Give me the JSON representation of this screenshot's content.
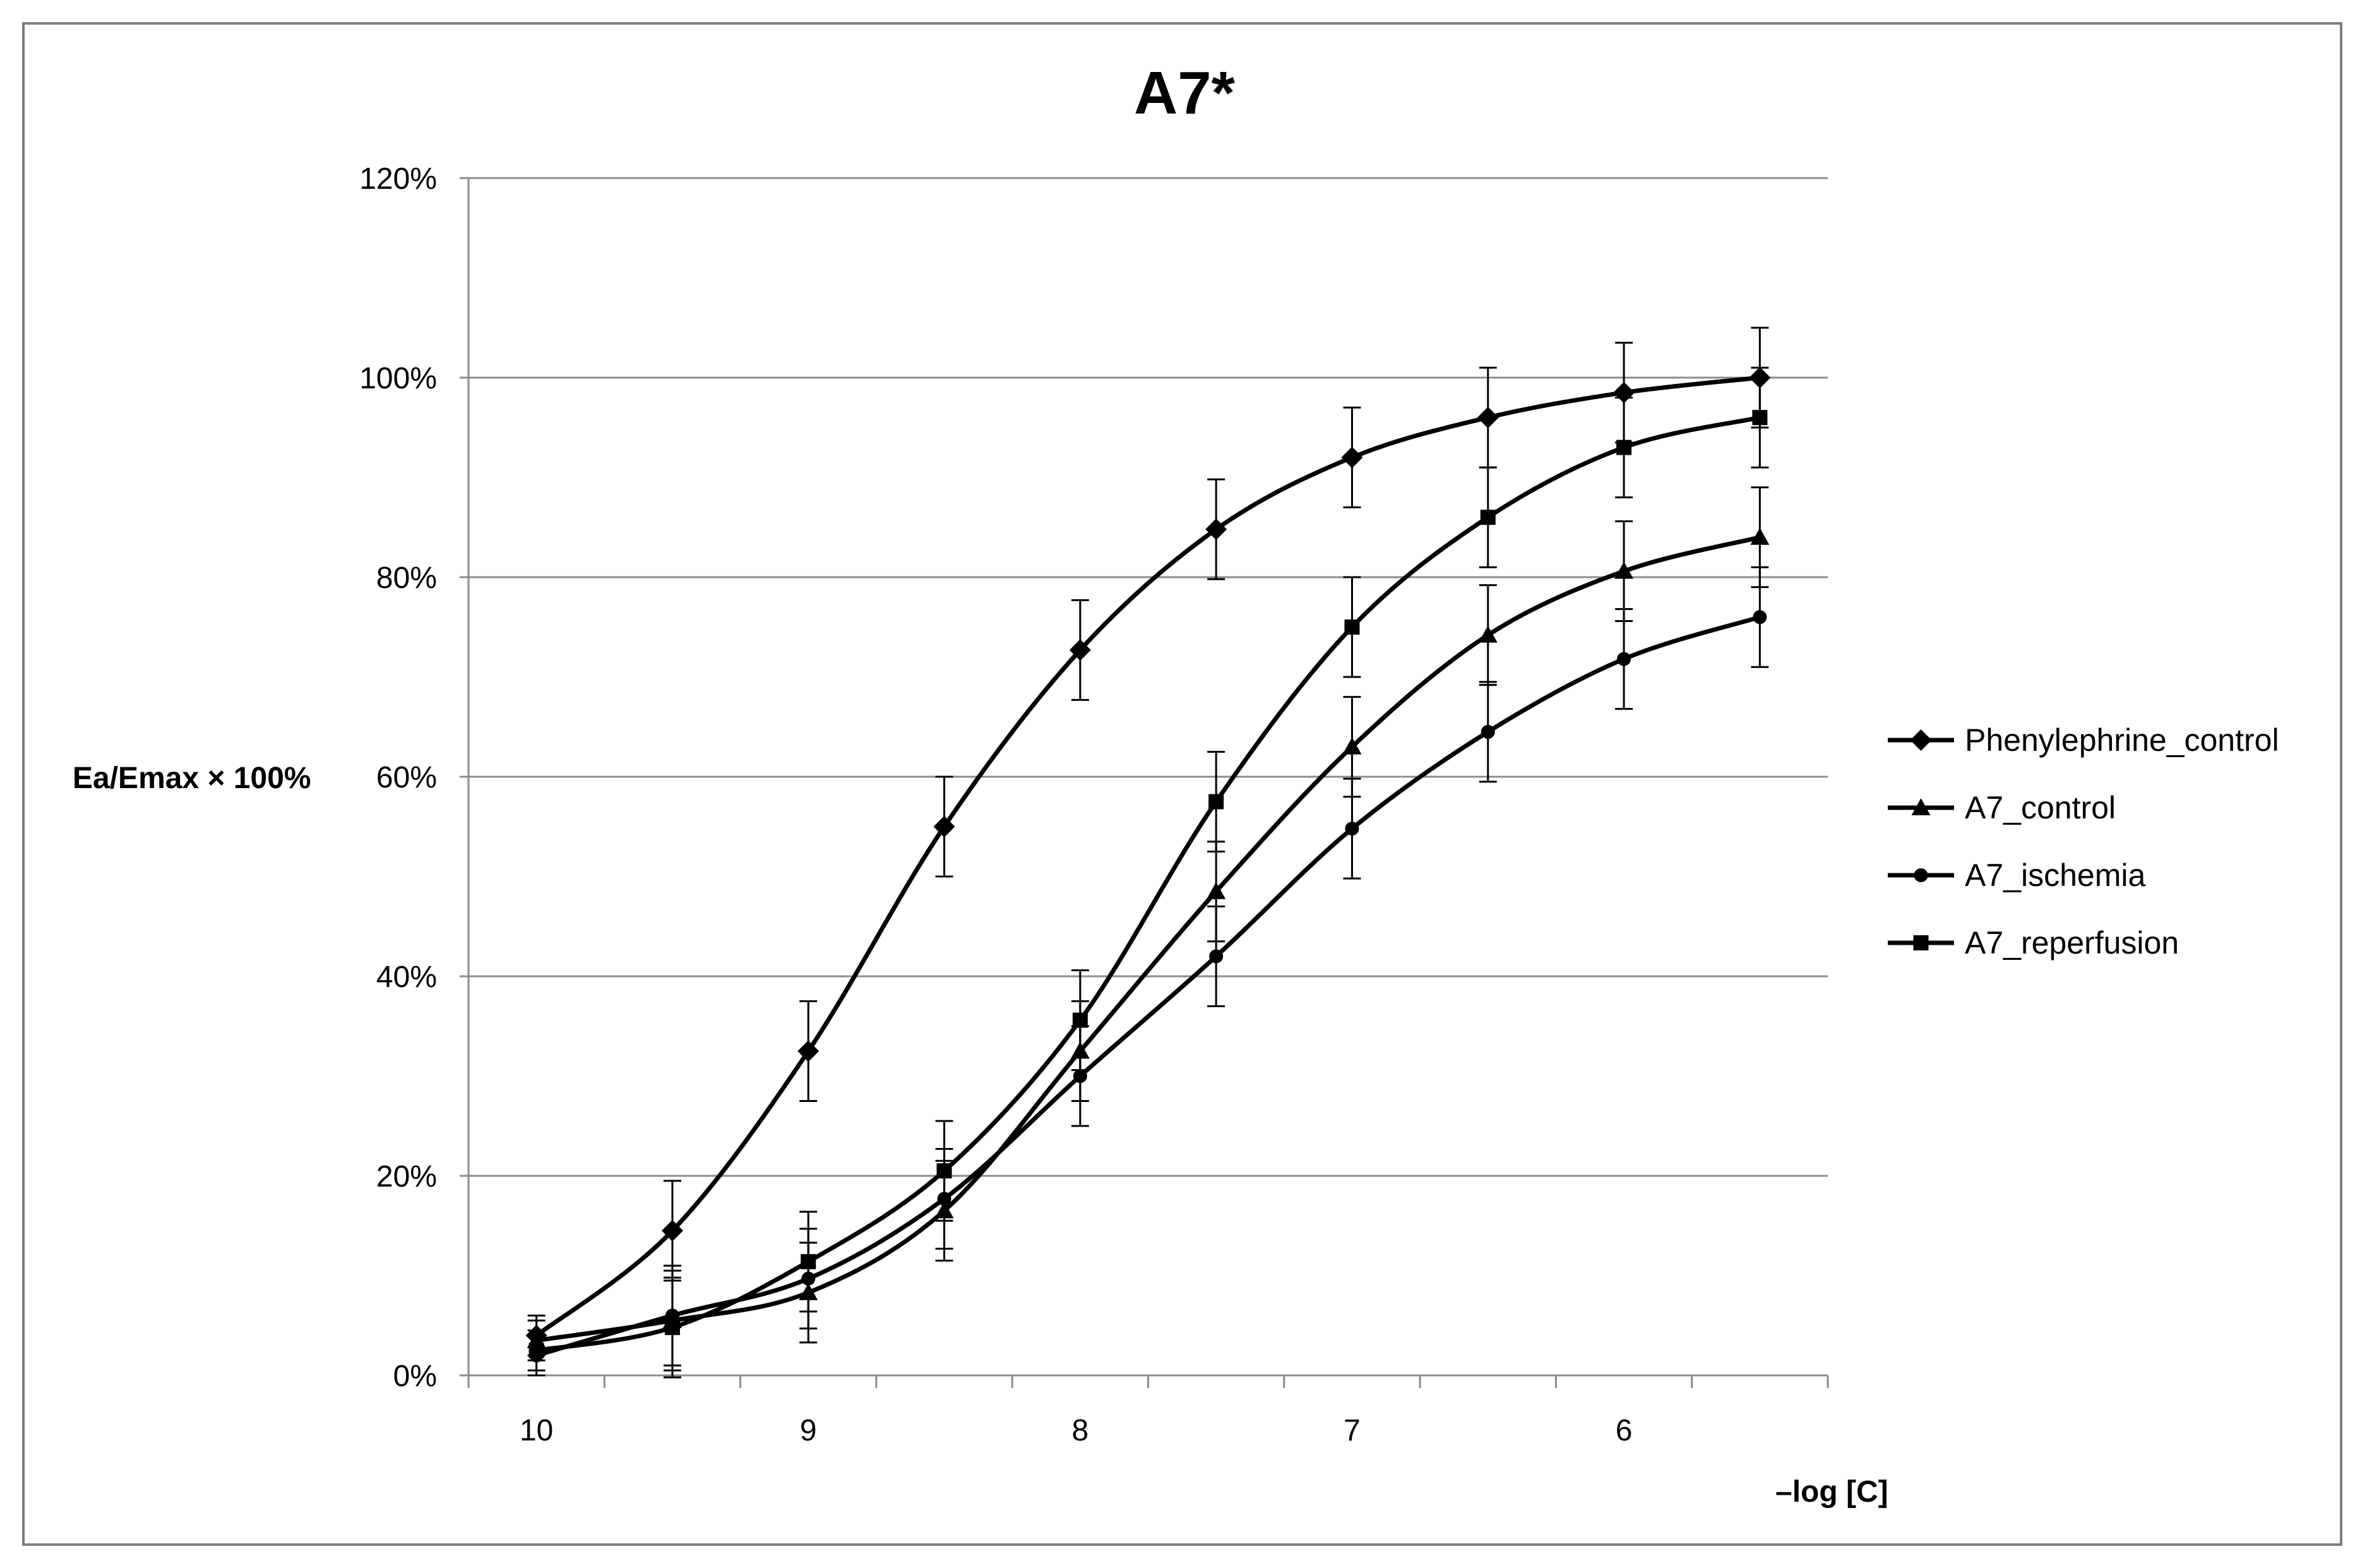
{
  "chart_data": {
    "type": "line",
    "title": "A7*",
    "xlabel": "–log  [C]",
    "ylabel": "Ea/Emax × 100%",
    "x_reversed": true,
    "xlim": [
      10.25,
      5.25
    ],
    "ylim": [
      0,
      1.2
    ],
    "x_ticks": [
      10,
      9,
      8,
      7,
      6
    ],
    "x_tick_labels": [
      "10",
      "9",
      "8",
      "7",
      "6"
    ],
    "y_ticks": [
      0,
      0.2,
      0.4,
      0.6,
      0.8,
      1.0,
      1.2
    ],
    "y_tick_labels": [
      "0%",
      "20%",
      "40%",
      "60%",
      "80%",
      "100%",
      "120%"
    ],
    "grid": "horizontal",
    "legend_position": "right",
    "x": [
      10,
      9.5,
      9,
      8.5,
      8,
      7.5,
      7,
      6.5,
      6,
      5.5
    ],
    "series": [
      {
        "name": "Phenylephrine_control",
        "marker": "diamond",
        "values": [
          0.04,
          0.145,
          0.325,
          0.55,
          0.727,
          0.848,
          0.92,
          0.96,
          0.985,
          1.0
        ],
        "error": [
          0.02,
          0.05,
          0.05,
          0.05,
          0.05,
          0.05,
          0.05,
          0.05,
          0.05,
          0.05
        ]
      },
      {
        "name": "A7_control",
        "marker": "triangle",
        "values": [
          0.035,
          0.055,
          0.083,
          0.165,
          0.325,
          0.485,
          0.63,
          0.742,
          0.806,
          0.84
        ],
        "error": [
          0.02,
          0.05,
          0.05,
          0.05,
          0.05,
          0.05,
          0.05,
          0.05,
          0.05,
          0.05
        ]
      },
      {
        "name": "A7_ischemia",
        "marker": "circle",
        "values": [
          0.02,
          0.06,
          0.097,
          0.177,
          0.3,
          0.42,
          0.548,
          0.645,
          0.718,
          0.76
        ],
        "error": [
          0.02,
          0.05,
          0.05,
          0.05,
          0.05,
          0.05,
          0.05,
          0.05,
          0.05,
          0.05
        ]
      },
      {
        "name": "A7_reperfusion",
        "marker": "square",
        "values": [
          0.025,
          0.048,
          0.114,
          0.205,
          0.356,
          0.575,
          0.75,
          0.86,
          0.93,
          0.96
        ],
        "error": [
          0.02,
          0.05,
          0.05,
          0.05,
          0.05,
          0.05,
          0.05,
          0.05,
          0.05,
          0.05
        ]
      }
    ]
  }
}
